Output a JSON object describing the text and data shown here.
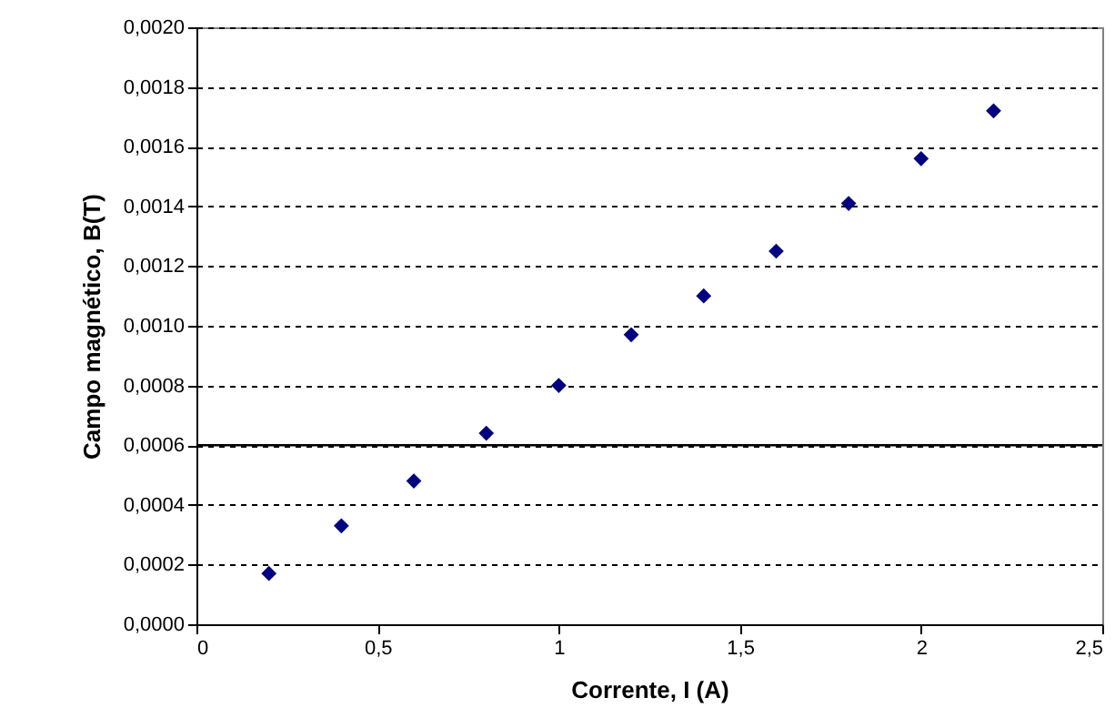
{
  "chart_data": {
    "type": "scatter",
    "xlabel": "Corrente, I (A)",
    "ylabel": "Campo magnético, B(T)",
    "x": [
      0.2,
      0.4,
      0.6,
      0.8,
      1.0,
      1.2,
      1.4,
      1.6,
      1.8,
      2.0,
      2.2
    ],
    "series": [
      {
        "color": "#000080",
        "values": [
          0.00017,
          0.00033,
          0.00048,
          0.00064,
          0.0008,
          0.00097,
          0.0011,
          0.00125,
          0.00141,
          0.00156,
          0.00172
        ]
      }
    ],
    "xlim": [
      0,
      2.5
    ],
    "xticks": [
      0,
      {
        "value": 0.5,
        "label": "0,5"
      },
      1,
      {
        "value": 1.5,
        "label": "1,5"
      },
      2,
      {
        "value": 2.5,
        "label": "2,5"
      }
    ],
    "ylim": [
      0,
      0.002
    ],
    "yticks": [
      {
        "value": 0,
        "label": "0,0000"
      },
      {
        "value": 0.0002,
        "label": "0,0002"
      },
      {
        "value": 0.0004,
        "label": "0,0004"
      },
      {
        "value": 0.0006,
        "label": "0,0006"
      },
      {
        "value": 0.0008,
        "label": "0,0008"
      },
      {
        "value": 0.001,
        "label": "0,0010"
      },
      {
        "value": 0.0012,
        "label": "0,0012"
      },
      {
        "value": 0.0014,
        "label": "0,0014"
      },
      {
        "value": 0.0016,
        "label": "0,0016"
      },
      {
        "value": 0.0018,
        "label": "0,0018"
      },
      {
        "value": 0.002,
        "label": "0,0020"
      }
    ],
    "ref_lines": [
      {
        "axis": "y",
        "value": 0.0006,
        "color": "#000000",
        "line_style": "solid"
      }
    ],
    "grid": "y",
    "line_style": "dashed",
    "marker": "diamond"
  }
}
